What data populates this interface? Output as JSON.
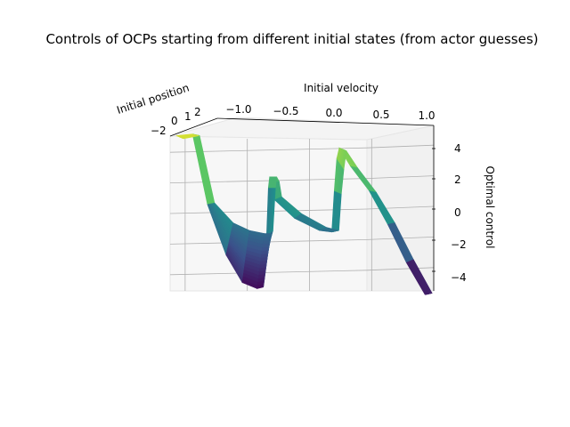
{
  "chart_data": {
    "type": "surface",
    "title": "Controls of OCPs starting from different initial states (from actor guesses)",
    "xlabel": "Initial velocity",
    "ylabel": "Initial position",
    "zlabel": "Optimal control",
    "x_ticks": [
      "−1.0",
      "−0.5",
      "0.0",
      "0.5",
      "1.0"
    ],
    "y_ticks": [
      "−2",
      "0",
      "1",
      "2"
    ],
    "z_ticks": [
      "4",
      "2",
      "0",
      "−2",
      "−4"
    ],
    "xlim": [
      -1.0,
      1.0
    ],
    "zlim": [
      -5,
      5
    ],
    "colormap": "viridis",
    "colors": {
      "low": "#440154",
      "mid": "#21908d",
      "high": "#fde725",
      "pane": "#f2f2f2"
    },
    "profile": {
      "x": [
        -1.25,
        -1.12,
        -1.0,
        -0.85,
        -0.72,
        -0.6,
        -0.55,
        -0.53,
        -0.51,
        -0.5,
        -0.48,
        -0.46,
        -0.3,
        -0.1,
        0.0,
        0.02,
        0.04,
        0.06,
        0.15,
        0.3,
        0.45,
        0.6,
        0.75
      ],
      "z_front": [
        4.8,
        4.9,
        0.3,
        -3.0,
        -4.8,
        -5.2,
        -5.1,
        -3.0,
        1.4,
        2.1,
        1.8,
        0.6,
        -0.6,
        -1.4,
        -1.5,
        1.2,
        3.3,
        4.0,
        2.8,
        1.2,
        -1.0,
        -3.5,
        -5.6
      ],
      "z_back": [
        4.6,
        4.8,
        0.4,
        -0.9,
        -1.4,
        -1.6,
        -1.6,
        -1.4,
        1.4,
        2.1,
        1.8,
        0.8,
        -0.3,
        -1.2,
        -1.4,
        1.0,
        2.6,
        3.8,
        2.7,
        1.1,
        -0.9,
        -3.3,
        -5.5
      ]
    }
  }
}
